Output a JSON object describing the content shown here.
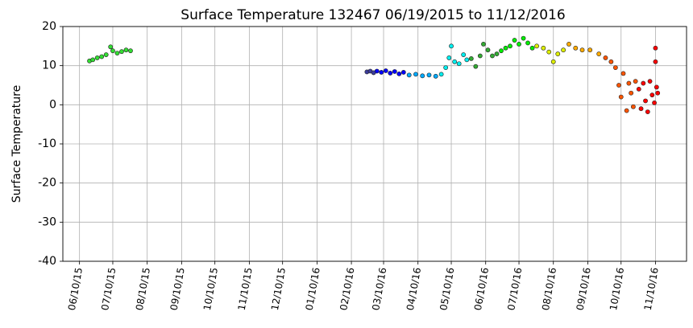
{
  "chart_data": {
    "type": "scatter",
    "title": "Surface Temperature 132467  06/19/2015 to 11/12/2016",
    "y_label": "Surface Temperature",
    "xlim": [
      "2015-05-26",
      "2016-12-08"
    ],
    "ylim": [
      -40,
      20
    ],
    "yticks": [
      -40,
      -30,
      -20,
      -10,
      0,
      10,
      20
    ],
    "xticks": [
      {
        "value": "2015-06-10",
        "label": "06/10/15"
      },
      {
        "value": "2015-07-10",
        "label": "07/10/15"
      },
      {
        "value": "2015-08-10",
        "label": "08/10/15"
      },
      {
        "value": "2015-09-10",
        "label": "09/10/15"
      },
      {
        "value": "2015-10-10",
        "label": "10/10/15"
      },
      {
        "value": "2015-11-10",
        "label": "11/10/15"
      },
      {
        "value": "2015-12-10",
        "label": "12/10/15"
      },
      {
        "value": "2016-01-10",
        "label": "01/10/16"
      },
      {
        "value": "2016-02-10",
        "label": "02/10/16"
      },
      {
        "value": "2016-03-10",
        "label": "03/10/16"
      },
      {
        "value": "2016-04-10",
        "label": "04/10/16"
      },
      {
        "value": "2016-05-10",
        "label": "05/10/16"
      },
      {
        "value": "2016-06-10",
        "label": "06/10/16"
      },
      {
        "value": "2016-07-10",
        "label": "07/10/16"
      },
      {
        "value": "2016-08-10",
        "label": "08/10/16"
      },
      {
        "value": "2016-09-10",
        "label": "09/10/16"
      },
      {
        "value": "2016-10-10",
        "label": "10/10/16"
      },
      {
        "value": "2016-11-10",
        "label": "11/10/16"
      }
    ],
    "grid": true,
    "series": [
      {
        "color": "#33dd33",
        "x": [
          "2015-06-19",
          "2015-06-22",
          "2015-06-26",
          "2015-06-30",
          "2015-07-04",
          "2015-07-08",
          "2015-07-10",
          "2015-07-14",
          "2015-07-18",
          "2015-07-22",
          "2015-07-26"
        ],
        "values": [
          11.2,
          11.5,
          12.0,
          12.3,
          12.8,
          14.8,
          13.8,
          13.2,
          13.6,
          14.0,
          13.8
        ]
      },
      {
        "color": "#3c3c9c",
        "x": [
          "2016-02-24",
          "2016-02-27",
          "2016-03-01"
        ],
        "values": [
          8.4,
          8.6,
          8.2
        ]
      },
      {
        "color": "#0000ff",
        "x": [
          "2016-03-04",
          "2016-03-08",
          "2016-03-12",
          "2016-03-16",
          "2016-03-20",
          "2016-03-24",
          "2016-03-28"
        ],
        "values": [
          8.6,
          8.3,
          8.7,
          8.1,
          8.5,
          7.9,
          8.3
        ]
      },
      {
        "color": "#00aaff",
        "x": [
          "2016-04-02",
          "2016-04-08",
          "2016-04-14",
          "2016-04-20",
          "2016-04-26"
        ],
        "values": [
          7.6,
          7.8,
          7.4,
          7.6,
          7.3
        ]
      },
      {
        "color": "#00eeee",
        "x": [
          "2016-05-01",
          "2016-05-05",
          "2016-05-08",
          "2016-05-10",
          "2016-05-13",
          "2016-05-17",
          "2016-05-21",
          "2016-05-24"
        ],
        "values": [
          7.8,
          9.5,
          12.0,
          15.0,
          11.0,
          10.5,
          12.8,
          11.5
        ]
      },
      {
        "color": "#33aa33",
        "x": [
          "2016-05-28",
          "2016-06-01",
          "2016-06-05",
          "2016-06-08",
          "2016-06-12",
          "2016-06-16",
          "2016-06-20"
        ],
        "values": [
          11.8,
          9.8,
          12.5,
          15.5,
          14.0,
          12.5,
          13.0
        ]
      },
      {
        "color": "#00ee00",
        "x": [
          "2016-06-24",
          "2016-06-28",
          "2016-07-02",
          "2016-07-06",
          "2016-07-10",
          "2016-07-14",
          "2016-07-18",
          "2016-07-22"
        ],
        "values": [
          13.8,
          14.5,
          15.0,
          16.5,
          15.5,
          17.0,
          15.8,
          14.5
        ]
      },
      {
        "color": "#ddee00",
        "x": [
          "2016-07-26",
          "2016-08-01",
          "2016-08-06",
          "2016-08-10",
          "2016-08-14",
          "2016-08-19"
        ],
        "values": [
          15.0,
          14.5,
          13.5,
          11.0,
          13.0,
          14.0
        ]
      },
      {
        "color": "#ffaa00",
        "x": [
          "2016-08-24",
          "2016-08-30",
          "2016-09-05",
          "2016-09-12",
          "2016-09-20"
        ],
        "values": [
          15.5,
          14.5,
          14.0,
          14.0,
          13.0
        ]
      },
      {
        "color": "#ff5500",
        "x": [
          "2016-09-26",
          "2016-10-01",
          "2016-10-05",
          "2016-10-08",
          "2016-10-10",
          "2016-10-12",
          "2016-10-15",
          "2016-10-17",
          "2016-10-19",
          "2016-10-21",
          "2016-10-23"
        ],
        "values": [
          12.0,
          11.0,
          9.5,
          5.0,
          2.0,
          8.0,
          -1.5,
          5.5,
          3.0,
          -0.5,
          6.0
        ]
      },
      {
        "color": "#ff0000",
        "x": [
          "2016-10-26",
          "2016-10-28",
          "2016-10-30",
          "2016-11-01",
          "2016-11-03",
          "2016-11-05",
          "2016-11-07",
          "2016-11-09",
          "2016-11-10",
          "2016-11-10",
          "2016-11-11",
          "2016-11-12"
        ],
        "values": [
          4.0,
          -1.0,
          5.5,
          1.0,
          -1.8,
          6.0,
          2.5,
          0.5,
          14.5,
          11.0,
          4.5,
          3.0
        ]
      }
    ]
  }
}
